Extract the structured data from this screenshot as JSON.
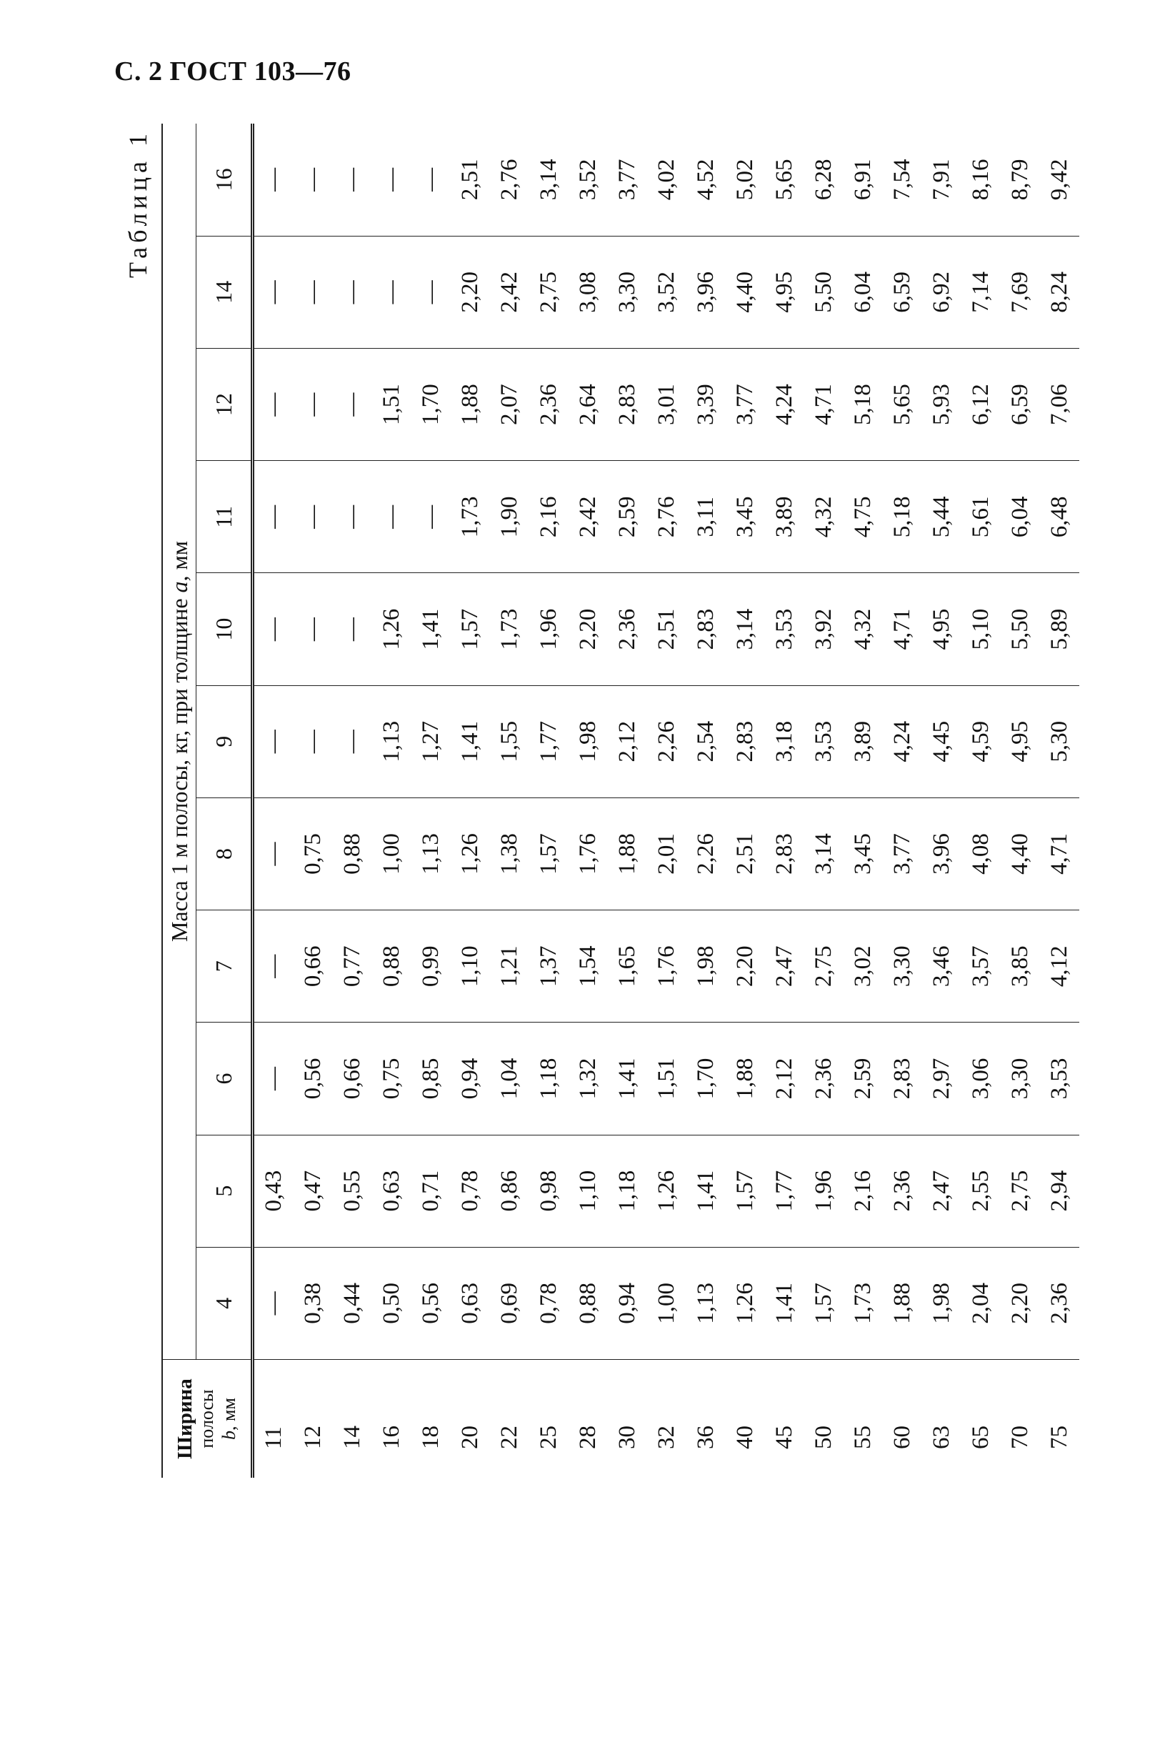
{
  "page_header": "С. 2 ГОСТ 103—76",
  "table": {
    "caption": "Таблица 1",
    "b_header": {
      "line1": "Ширина",
      "line2": "полосы",
      "var": "b",
      "unit": ", мм"
    },
    "group_header": {
      "text": "Масса 1 м полосы, кг, при толщине ",
      "var": "a",
      "unit": ", мм"
    },
    "thicknesses": [
      "4",
      "5",
      "6",
      "7",
      "8",
      "9",
      "10",
      "11",
      "12",
      "14",
      "16"
    ],
    "rows": [
      {
        "b": "11",
        "v": [
          "—",
          "0,43",
          "—",
          "—",
          "—",
          "—",
          "—",
          "—",
          "—",
          "—",
          "—"
        ]
      },
      {
        "b": "12",
        "v": [
          "0,38",
          "0,47",
          "0,56",
          "0,66",
          "0,75",
          "—",
          "—",
          "—",
          "—",
          "—",
          "—"
        ]
      },
      {
        "b": "14",
        "v": [
          "0,44",
          "0,55",
          "0,66",
          "0,77",
          "0,88",
          "—",
          "—",
          "—",
          "—",
          "—",
          "—"
        ]
      },
      {
        "b": "16",
        "v": [
          "0,50",
          "0,63",
          "0,75",
          "0,88",
          "1,00",
          "1,13",
          "1,26",
          "—",
          "1,51",
          "—",
          "—"
        ]
      },
      {
        "b": "18",
        "v": [
          "0,56",
          "0,71",
          "0,85",
          "0,99",
          "1,13",
          "1,27",
          "1,41",
          "—",
          "1,70",
          "—",
          "—"
        ]
      },
      {
        "b": "20",
        "v": [
          "0,63",
          "0,78",
          "0,94",
          "1,10",
          "1,26",
          "1,41",
          "1,57",
          "1,73",
          "1,88",
          "2,20",
          "2,51"
        ]
      },
      {
        "b": "22",
        "v": [
          "0,69",
          "0,86",
          "1,04",
          "1,21",
          "1,38",
          "1,55",
          "1,73",
          "1,90",
          "2,07",
          "2,42",
          "2,76"
        ]
      },
      {
        "b": "25",
        "v": [
          "0,78",
          "0,98",
          "1,18",
          "1,37",
          "1,57",
          "1,77",
          "1,96",
          "2,16",
          "2,36",
          "2,75",
          "3,14"
        ]
      },
      {
        "b": "28",
        "v": [
          "0,88",
          "1,10",
          "1,32",
          "1,54",
          "1,76",
          "1,98",
          "2,20",
          "2,42",
          "2,64",
          "3,08",
          "3,52"
        ]
      },
      {
        "b": "30",
        "v": [
          "0,94",
          "1,18",
          "1,41",
          "1,65",
          "1,88",
          "2,12",
          "2,36",
          "2,59",
          "2,83",
          "3,30",
          "3,77"
        ]
      },
      {
        "b": "32",
        "v": [
          "1,00",
          "1,26",
          "1,51",
          "1,76",
          "2,01",
          "2,26",
          "2,51",
          "2,76",
          "3,01",
          "3,52",
          "4,02"
        ]
      },
      {
        "b": "36",
        "v": [
          "1,13",
          "1,41",
          "1,70",
          "1,98",
          "2,26",
          "2,54",
          "2,83",
          "3,11",
          "3,39",
          "3,96",
          "4,52"
        ]
      },
      {
        "b": "40",
        "v": [
          "1,26",
          "1,57",
          "1,88",
          "2,20",
          "2,51",
          "2,83",
          "3,14",
          "3,45",
          "3,77",
          "4,40",
          "5,02"
        ]
      },
      {
        "b": "45",
        "v": [
          "1,41",
          "1,77",
          "2,12",
          "2,47",
          "2,83",
          "3,18",
          "3,53",
          "3,89",
          "4,24",
          "4,95",
          "5,65"
        ]
      },
      {
        "b": "50",
        "v": [
          "1,57",
          "1,96",
          "2,36",
          "2,75",
          "3,14",
          "3,53",
          "3,92",
          "4,32",
          "4,71",
          "5,50",
          "6,28"
        ]
      },
      {
        "b": "55",
        "v": [
          "1,73",
          "2,16",
          "2,59",
          "3,02",
          "3,45",
          "3,89",
          "4,32",
          "4,75",
          "5,18",
          "6,04",
          "6,91"
        ]
      },
      {
        "b": "60",
        "v": [
          "1,88",
          "2,36",
          "2,83",
          "3,30",
          "3,77",
          "4,24",
          "4,71",
          "5,18",
          "5,65",
          "6,59",
          "7,54"
        ]
      },
      {
        "b": "63",
        "v": [
          "1,98",
          "2,47",
          "2,97",
          "3,46",
          "3,96",
          "4,45",
          "4,95",
          "5,44",
          "5,93",
          "6,92",
          "7,91"
        ]
      },
      {
        "b": "65",
        "v": [
          "2,04",
          "2,55",
          "3,06",
          "3,57",
          "4,08",
          "4,59",
          "5,10",
          "5,61",
          "6,12",
          "7,14",
          "8,16"
        ]
      },
      {
        "b": "70",
        "v": [
          "2,20",
          "2,75",
          "3,30",
          "3,85",
          "4,40",
          "4,95",
          "5,50",
          "6,04",
          "6,59",
          "7,69",
          "8,79"
        ]
      },
      {
        "b": "75",
        "v": [
          "2,36",
          "2,94",
          "3,53",
          "4,12",
          "4,71",
          "5,30",
          "5,89",
          "6,48",
          "7,06",
          "8,24",
          "9,42"
        ]
      }
    ]
  }
}
